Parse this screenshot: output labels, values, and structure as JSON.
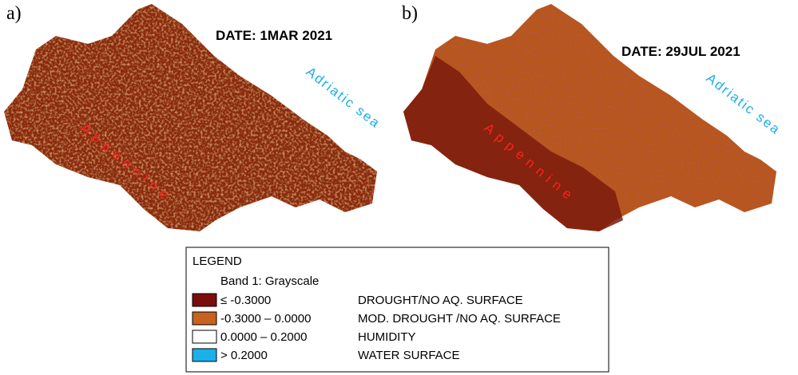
{
  "panels": [
    {
      "label": "a)",
      "date": "DATE: 1MAR 2021",
      "sea": "Adriatic sea",
      "mountains": "Appennine"
    },
    {
      "label": "b)",
      "date": "DATE: 29JUL 2021",
      "sea": "Adriatic sea",
      "mountains": "Appennine"
    }
  ],
  "legend": {
    "title": "LEGEND",
    "band": "Band 1: Grayscale",
    "items": [
      {
        "range": "≤ -0.3000",
        "description": "DROUGHT/NO AQ. SURFACE",
        "color": "#7b0d0d"
      },
      {
        "range": "-0.3000 – 0.0000",
        "description": "MOD. DROUGHT /NO AQ. SURFACE",
        "color": "#c8621f"
      },
      {
        "range": "0.0000 – 0.2000",
        "description": "HUMIDITY",
        "color": "#ffffff"
      },
      {
        "range": "> 0.2000",
        "description": "WATER SURFACE",
        "color": "#1ab0ea"
      }
    ]
  }
}
